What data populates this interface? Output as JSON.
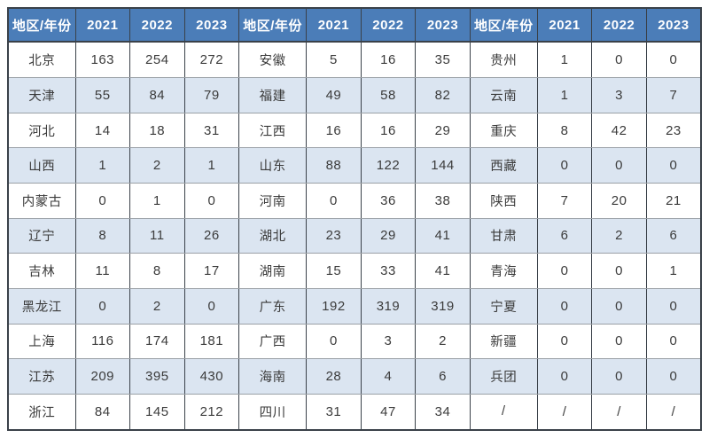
{
  "colors": {
    "page_bg": "#ffffff",
    "header_bg": "#4b7db8",
    "header_text": "#ffffff",
    "stripe_bg": "#dbe5f1",
    "row_bg": "#ffffff",
    "body_text": "#3b3b3b",
    "border_dark": "#3a4149",
    "border_light": "#9aa0a6"
  },
  "chart_data": {
    "type": "table",
    "title": "",
    "header_labels": [
      "地区/年份",
      "2021",
      "2022",
      "2023"
    ],
    "layout": "three column groups side by side, each with region + 3 year columns, alternating row stripes",
    "groups": [
      {
        "name": "group-1",
        "rows": [
          [
            "北京",
            "163",
            "254",
            "272"
          ],
          [
            "天津",
            "55",
            "84",
            "79"
          ],
          [
            "河北",
            "14",
            "18",
            "31"
          ],
          [
            "山西",
            "1",
            "2",
            "1"
          ],
          [
            "内蒙古",
            "0",
            "1",
            "0"
          ],
          [
            "辽宁",
            "8",
            "11",
            "26"
          ],
          [
            "吉林",
            "11",
            "8",
            "17"
          ],
          [
            "黑龙江",
            "0",
            "2",
            "0"
          ],
          [
            "上海",
            "116",
            "174",
            "181"
          ],
          [
            "江苏",
            "209",
            "395",
            "430"
          ],
          [
            "浙江",
            "84",
            "145",
            "212"
          ]
        ]
      },
      {
        "name": "group-2",
        "rows": [
          [
            "安徽",
            "5",
            "16",
            "35"
          ],
          [
            "福建",
            "49",
            "58",
            "82"
          ],
          [
            "江西",
            "16",
            "16",
            "29"
          ],
          [
            "山东",
            "88",
            "122",
            "144"
          ],
          [
            "河南",
            "0",
            "36",
            "38"
          ],
          [
            "湖北",
            "23",
            "29",
            "41"
          ],
          [
            "湖南",
            "15",
            "33",
            "41"
          ],
          [
            "广东",
            "192",
            "319",
            "319"
          ],
          [
            "广西",
            "0",
            "3",
            "2"
          ],
          [
            "海南",
            "28",
            "4",
            "6"
          ],
          [
            "四川",
            "31",
            "47",
            "34"
          ]
        ]
      },
      {
        "name": "group-3",
        "rows": [
          [
            "贵州",
            "1",
            "0",
            "0"
          ],
          [
            "云南",
            "1",
            "3",
            "7"
          ],
          [
            "重庆",
            "8",
            "42",
            "23"
          ],
          [
            "西藏",
            "0",
            "0",
            "0"
          ],
          [
            "陕西",
            "7",
            "20",
            "21"
          ],
          [
            "甘肃",
            "6",
            "2",
            "6"
          ],
          [
            "青海",
            "0",
            "0",
            "1"
          ],
          [
            "宁夏",
            "0",
            "0",
            "0"
          ],
          [
            "新疆",
            "0",
            "0",
            "0"
          ],
          [
            "兵团",
            "0",
            "0",
            "0"
          ],
          [
            "/",
            "/",
            "/",
            "/"
          ]
        ]
      }
    ]
  }
}
